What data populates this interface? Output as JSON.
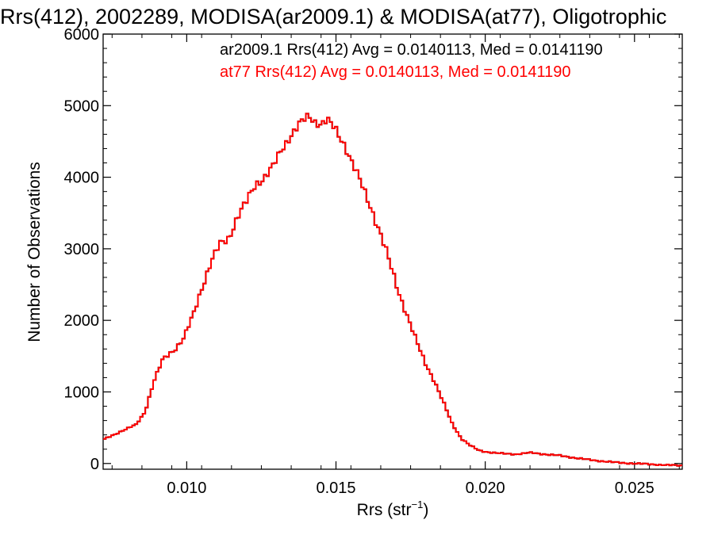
{
  "chart_data": {
    "type": "line",
    "title": "Rrs(412), 2002289, MODISA(ar2009.1) & MODISA(at77), Oligotrophic",
    "xlabel_main": "Rrs (str",
    "xlabel_sup": "−1",
    "xlabel_close": ")",
    "ylabel": "Number of Observations",
    "xlim": [
      0.0072,
      0.0266
    ],
    "ylim": [
      -80,
      6000
    ],
    "x_ticks": [
      "0.010",
      "0.015",
      "0.020",
      "0.025"
    ],
    "y_ticks": [
      "0",
      "1000",
      "2000",
      "3000",
      "4000",
      "5000",
      "6000"
    ],
    "legend_placement": "top-right",
    "legend": [
      "ar2009.1 Rrs(412) Avg = 0.0140113, Med = 0.0141190",
      "at77 Rrs(412) Avg = 0.0140113, Med = 0.0141190"
    ],
    "series_colors": [
      "#000000",
      "#ff0000"
    ],
    "x": [
      0.0072,
      0.0078,
      0.0083,
      0.0086,
      0.0089,
      0.0092,
      0.0096,
      0.0099,
      0.0102,
      0.0105,
      0.0108,
      0.0111,
      0.0114,
      0.0117,
      0.012,
      0.0123,
      0.0126,
      0.0129,
      0.0132,
      0.0135,
      0.0138,
      0.0141,
      0.0143,
      0.0145,
      0.0147,
      0.015,
      0.0153,
      0.0156,
      0.0159,
      0.0162,
      0.0165,
      0.0168,
      0.0171,
      0.0174,
      0.0177,
      0.018,
      0.0183,
      0.0186,
      0.0189,
      0.0192,
      0.0195,
      0.0198,
      0.0201,
      0.0205,
      0.021,
      0.0215,
      0.022,
      0.0225,
      0.023,
      0.0235,
      0.024,
      0.0245,
      0.025,
      0.0255,
      0.026,
      0.0266
    ],
    "y": [
      330,
      450,
      540,
      720,
      1150,
      1450,
      1600,
      1750,
      2050,
      2450,
      2800,
      3050,
      3150,
      3450,
      3650,
      3900,
      4000,
      4150,
      4400,
      4600,
      4750,
      4850,
      4780,
      4750,
      4800,
      4650,
      4450,
      4150,
      3850,
      3550,
      3200,
      2800,
      2400,
      2050,
      1700,
      1400,
      1150,
      850,
      550,
      350,
      250,
      180,
      160,
      140,
      130,
      150,
      130,
      110,
      80,
      50,
      30,
      10,
      0,
      -10,
      -20,
      -30
    ]
  }
}
